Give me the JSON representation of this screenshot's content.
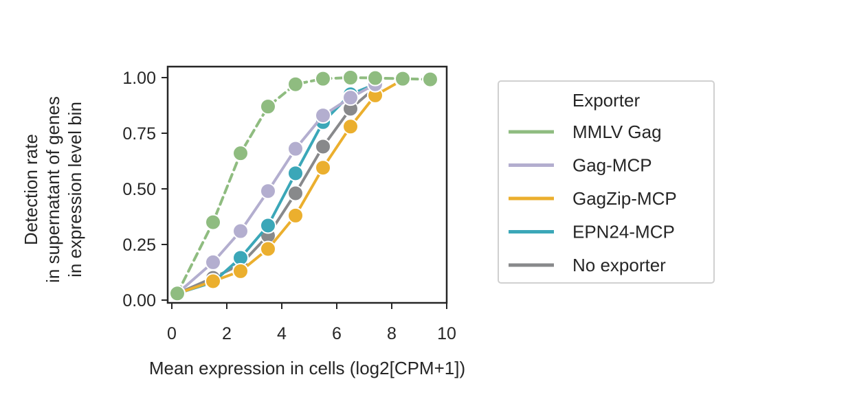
{
  "chart_data": {
    "type": "line",
    "title": "",
    "xlabel": "Mean expression in cells (log2[CPM+1])",
    "ylabel_lines": [
      "Detection rate",
      "in supernatant of genes",
      "in expression level bin"
    ],
    "xlim": [
      0,
      10
    ],
    "ylim": [
      0,
      1.0
    ],
    "xticks": [
      0,
      2,
      4,
      6,
      8,
      10
    ],
    "xtick_labels": [
      "0",
      "2",
      "4",
      "6",
      "8",
      "10"
    ],
    "yticks": [
      0,
      0.25,
      0.5,
      0.75,
      1.0
    ],
    "ytick_labels": [
      "0.00",
      "0.25",
      "0.50",
      "0.75",
      "1.00"
    ],
    "grid": false,
    "legend": {
      "title": "Exporter",
      "placement": "outside-right"
    },
    "series": [
      {
        "name": "MMLV Gag",
        "color": "#8fbc80",
        "style": "dashed",
        "x": [
          0.2,
          1.5,
          2.5,
          3.5,
          4.5,
          5.5,
          6.5,
          7.4,
          8.4,
          9.4
        ],
        "y": [
          0.03,
          0.35,
          0.66,
          0.87,
          0.97,
          0.995,
          1.0,
          0.998,
          0.995,
          0.992
        ]
      },
      {
        "name": "Gag-MCP",
        "color": "#b3aecf",
        "style": "solid",
        "x": [
          0.2,
          1.5,
          2.5,
          3.5,
          4.5,
          5.5,
          6.5,
          7.4
        ],
        "y": [
          0.03,
          0.17,
          0.31,
          0.49,
          0.68,
          0.83,
          0.91,
          0.97
        ]
      },
      {
        "name": "GagZip-MCP",
        "color": "#ebaf2e",
        "style": "solid",
        "x": [
          0.2,
          1.5,
          2.5,
          3.5,
          4.5,
          5.5,
          6.5,
          7.4,
          8.4
        ],
        "y": [
          0.03,
          0.085,
          0.13,
          0.23,
          0.38,
          0.595,
          0.78,
          0.92,
          0.99
        ]
      },
      {
        "name": "EPN24-MCP",
        "color": "#3ba7b8",
        "style": "solid",
        "x": [
          0.2,
          1.5,
          2.5,
          3.5,
          4.5,
          5.5,
          6.5,
          7.4
        ],
        "y": [
          0.03,
          0.08,
          0.19,
          0.335,
          0.57,
          0.8,
          0.925,
          0.97
        ]
      },
      {
        "name": "No exporter",
        "color": "#88898b",
        "style": "solid",
        "x": [
          0.2,
          1.5,
          2.5,
          3.5,
          4.5,
          5.5,
          6.5,
          7.4
        ],
        "y": [
          0.03,
          0.1,
          0.16,
          0.29,
          0.48,
          0.69,
          0.86,
          0.955
        ]
      }
    ]
  }
}
